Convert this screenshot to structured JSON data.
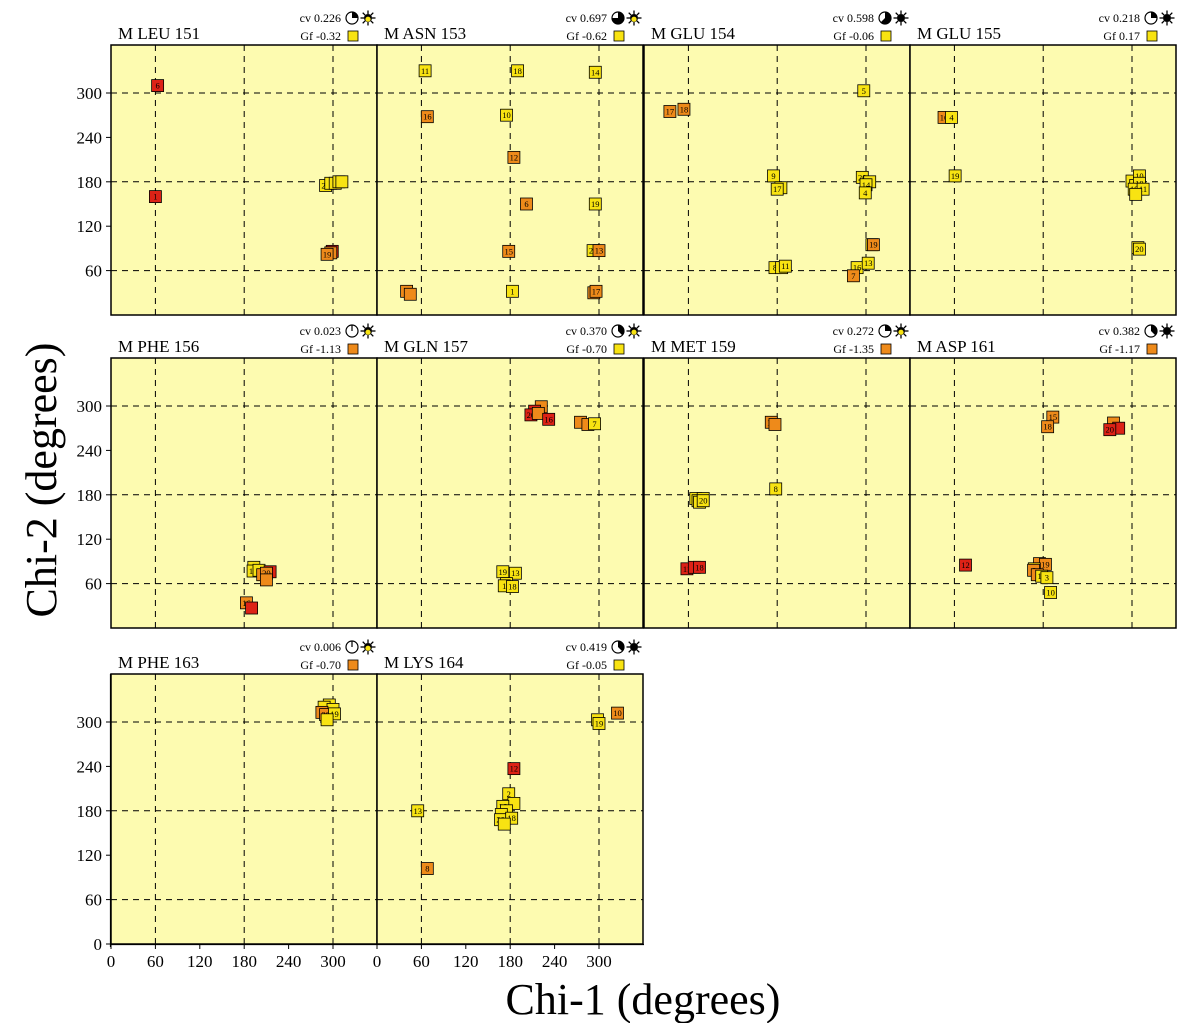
{
  "chart_data": {
    "type": "scatter",
    "xlabel": "Chi-1 (degrees)",
    "ylabel": "Chi-2 (degrees)",
    "xlim": [
      0,
      360
    ],
    "ylim": [
      0,
      360
    ],
    "xticks": [
      0,
      60,
      120,
      180,
      240,
      300
    ],
    "yticks": [
      0,
      60,
      120,
      180,
      240,
      300
    ],
    "grid_lines": [
      60,
      180,
      300
    ],
    "panel_background": "#fdfbb0",
    "color_scale": {
      "yellow": "#f8e312",
      "orange": "#ee8a1a",
      "red": "#dd2216"
    },
    "panels": [
      {
        "title": "M LEU 151",
        "cv": "cv 0.226",
        "gf": "Gf -0.32",
        "gf_color": "#f8e312",
        "cv_fraction": 0.25,
        "ring_icon": "sunburst-ring",
        "points": [
          {
            "label": "6",
            "x": 63,
            "y": 310,
            "color": "#dd2216"
          },
          {
            "label": "1",
            "x": 60,
            "y": 160,
            "color": "#dd2216"
          },
          {
            "label": "20",
            "x": 290,
            "y": 175,
            "color": "#f8e312"
          },
          {
            "label": "",
            "x": 297,
            "y": 178,
            "color": "#f8e312"
          },
          {
            "label": "",
            "x": 303,
            "y": 178,
            "color": "#f8e312"
          },
          {
            "label": "",
            "x": 308,
            "y": 180,
            "color": "#f8e312"
          },
          {
            "label": "",
            "x": 312,
            "y": 180,
            "color": "#f8e312"
          },
          {
            "label": "",
            "x": 299,
            "y": 86,
            "color": "#dd2216"
          },
          {
            "label": "",
            "x": 297,
            "y": 84,
            "color": "#ee8a1a"
          },
          {
            "label": "19",
            "x": 292,
            "y": 82,
            "color": "#ee8a1a"
          }
        ]
      },
      {
        "title": "M ASN 153",
        "cv": "cv 0.697",
        "gf": "Gf -0.62",
        "gf_color": "#f8e312",
        "cv_fraction": 0.75,
        "ring_icon": "sunburst-ring",
        "points": [
          {
            "label": "11",
            "x": 65,
            "y": 330,
            "color": "#f8e312"
          },
          {
            "label": "18",
            "x": 190,
            "y": 330,
            "color": "#f8e312"
          },
          {
            "label": "14",
            "x": 295,
            "y": 328,
            "color": "#f8e312"
          },
          {
            "label": "16",
            "x": 68,
            "y": 268,
            "color": "#ee8a1a"
          },
          {
            "label": "10",
            "x": 175,
            "y": 270,
            "color": "#f8e312"
          },
          {
            "label": "12",
            "x": 185,
            "y": 213,
            "color": "#ee8a1a"
          },
          {
            "label": "6",
            "x": 202,
            "y": 150,
            "color": "#ee8a1a"
          },
          {
            "label": "19",
            "x": 295,
            "y": 150,
            "color": "#f8e312"
          },
          {
            "label": "15",
            "x": 178,
            "y": 86,
            "color": "#ee8a1a"
          },
          {
            "label": "20",
            "x": 292,
            "y": 87,
            "color": "#f8e312"
          },
          {
            "label": "13",
            "x": 300,
            "y": 87,
            "color": "#ee8a1a"
          },
          {
            "label": "8",
            "x": 40,
            "y": 32,
            "color": "#ee8a1a"
          },
          {
            "label": "",
            "x": 45,
            "y": 28,
            "color": "#ee8a1a"
          },
          {
            "label": "1",
            "x": 183,
            "y": 32,
            "color": "#f8e312"
          },
          {
            "label": "",
            "x": 293,
            "y": 30,
            "color": "#ee8a1a"
          },
          {
            "label": "17",
            "x": 296,
            "y": 32,
            "color": "#ee8a1a"
          }
        ]
      },
      {
        "title": "M GLU 154",
        "cv": "cv 0.598",
        "gf": "Gf -0.06",
        "gf_color": "#f8e312",
        "cv_fraction": 0.625,
        "ring_icon": "sunburst-solid",
        "points": [
          {
            "label": "5",
            "x": 297,
            "y": 303,
            "color": "#f8e312"
          },
          {
            "label": "17",
            "x": 35,
            "y": 275,
            "color": "#ee8a1a"
          },
          {
            "label": "18",
            "x": 54,
            "y": 278,
            "color": "#ee8a1a"
          },
          {
            "label": "9",
            "x": 175,
            "y": 188,
            "color": "#f8e312"
          },
          {
            "label": "",
            "x": 185,
            "y": 172,
            "color": "#f8e312"
          },
          {
            "label": "17",
            "x": 180,
            "y": 170,
            "color": "#f8e312"
          },
          {
            "label": "20",
            "x": 295,
            "y": 186,
            "color": "#f8e312"
          },
          {
            "label": "",
            "x": 305,
            "y": 180,
            "color": "#f8e312"
          },
          {
            "label": "14",
            "x": 300,
            "y": 176,
            "color": "#f8e312"
          },
          {
            "label": "4",
            "x": 299,
            "y": 165,
            "color": "#f8e312"
          },
          {
            "label": "",
            "x": 308,
            "y": 95,
            "color": "#f8e312"
          },
          {
            "label": "19",
            "x": 310,
            "y": 95,
            "color": "#ee8a1a"
          },
          {
            "label": "8",
            "x": 177,
            "y": 64,
            "color": "#f8e312"
          },
          {
            "label": "",
            "x": 186,
            "y": 64,
            "color": "#f8e312"
          },
          {
            "label": "11",
            "x": 191,
            "y": 66,
            "color": "#f8e312"
          },
          {
            "label": "16",
            "x": 288,
            "y": 64,
            "color": "#f8e312"
          },
          {
            "label": "13",
            "x": 303,
            "y": 70,
            "color": "#f8e312"
          },
          {
            "label": "7",
            "x": 283,
            "y": 53,
            "color": "#ee8a1a"
          }
        ]
      },
      {
        "title": "M GLU 155",
        "cv": "cv 0.218",
        "gf": "Gf  0.17",
        "gf_color": "#f8e312",
        "cv_fraction": 0.25,
        "ring_icon": "sunburst-solid",
        "points": [
          {
            "label": "16",
            "x": 46,
            "y": 267,
            "color": "#ee8a1a"
          },
          {
            "label": "4",
            "x": 56,
            "y": 267,
            "color": "#f8e312"
          },
          {
            "label": "19",
            "x": 61,
            "y": 188,
            "color": "#f8e312"
          },
          {
            "label": "",
            "x": 300,
            "y": 181,
            "color": "#f8e312"
          },
          {
            "label": "",
            "x": 305,
            "y": 175,
            "color": "#f8e312"
          },
          {
            "label": "10",
            "x": 310,
            "y": 188,
            "color": "#f8e312"
          },
          {
            "label": "18",
            "x": 310,
            "y": 178,
            "color": "#f8e312"
          },
          {
            "label": "19",
            "x": 303,
            "y": 170,
            "color": "#f8e312"
          },
          {
            "label": "11",
            "x": 315,
            "y": 170,
            "color": "#f8e312"
          },
          {
            "label": "",
            "x": 305,
            "y": 163,
            "color": "#f8e312"
          },
          {
            "label": "",
            "x": 308,
            "y": 91,
            "color": "#f8e312"
          },
          {
            "label": "20",
            "x": 310,
            "y": 89,
            "color": "#f8e312"
          }
        ]
      },
      {
        "title": "M PHE 156",
        "cv": "cv 0.023",
        "gf": "Gf -1.13",
        "gf_color": "#ee8a1a",
        "cv_fraction": 0.02,
        "ring_icon": "sunburst-ring",
        "points": [
          {
            "label": "",
            "x": 193,
            "y": 82,
            "color": "#f8e312"
          },
          {
            "label": "18",
            "x": 192,
            "y": 77,
            "color": "#f8e312"
          },
          {
            "label": "",
            "x": 200,
            "y": 78,
            "color": "#f8e312"
          },
          {
            "label": "",
            "x": 205,
            "y": 72,
            "color": "#ee8a1a"
          },
          {
            "label": "",
            "x": 215,
            "y": 76,
            "color": "#dd2216"
          },
          {
            "label": "20",
            "x": 210,
            "y": 74,
            "color": "#ee8a1a"
          },
          {
            "label": "",
            "x": 210,
            "y": 65,
            "color": "#ee8a1a"
          },
          {
            "label": "16",
            "x": 183,
            "y": 34,
            "color": "#ee8a1a"
          },
          {
            "label": "",
            "x": 190,
            "y": 27,
            "color": "#dd2216"
          }
        ]
      },
      {
        "title": "M GLN 157",
        "cv": "cv 0.370",
        "gf": "Gf -0.70",
        "gf_color": "#f8e312",
        "cv_fraction": 0.375,
        "ring_icon": "sunburst-ring",
        "points": [
          {
            "label": "",
            "x": 222,
            "y": 299,
            "color": "#ee8a1a"
          },
          {
            "label": "",
            "x": 213,
            "y": 293,
            "color": "#dd2216"
          },
          {
            "label": "20",
            "x": 208,
            "y": 288,
            "color": "#dd2216"
          },
          {
            "label": "",
            "x": 218,
            "y": 290,
            "color": "#ee8a1a"
          },
          {
            "label": "16",
            "x": 232,
            "y": 282,
            "color": "#dd2216"
          },
          {
            "label": "",
            "x": 275,
            "y": 278,
            "color": "#ee8a1a"
          },
          {
            "label": "",
            "x": 285,
            "y": 275,
            "color": "#ee8a1a"
          },
          {
            "label": "7",
            "x": 294,
            "y": 276,
            "color": "#f8e312"
          },
          {
            "label": "19",
            "x": 170,
            "y": 76,
            "color": "#f8e312"
          },
          {
            "label": "13",
            "x": 187,
            "y": 74,
            "color": "#f8e312"
          },
          {
            "label": "",
            "x": 175,
            "y": 60,
            "color": "#f8e312"
          },
          {
            "label": "1",
            "x": 172,
            "y": 57,
            "color": "#f8e312"
          },
          {
            "label": "18",
            "x": 183,
            "y": 56,
            "color": "#f8e312"
          }
        ]
      },
      {
        "title": "M MET 159",
        "cv": "cv 0.272",
        "gf": "Gf -1.35",
        "gf_color": "#ee8a1a",
        "cv_fraction": 0.25,
        "ring_icon": "sunburst-ring",
        "points": [
          {
            "label": "14",
            "x": 172,
            "y": 278,
            "color": "#ee8a1a"
          },
          {
            "label": "",
            "x": 177,
            "y": 275,
            "color": "#ee8a1a"
          },
          {
            "label": "8",
            "x": 178,
            "y": 188,
            "color": "#f8e312"
          },
          {
            "label": "",
            "x": 70,
            "y": 175,
            "color": "#f8e312"
          },
          {
            "label": "1",
            "x": 73,
            "y": 172,
            "color": "#f8e312"
          },
          {
            "label": "",
            "x": 80,
            "y": 175,
            "color": "#f8e312"
          },
          {
            "label": "",
            "x": 75,
            "y": 170,
            "color": "#f8e312"
          },
          {
            "label": "20",
            "x": 80,
            "y": 172,
            "color": "#f8e312"
          },
          {
            "label": "11",
            "x": 58,
            "y": 80,
            "color": "#dd2216"
          },
          {
            "label": "",
            "x": 68,
            "y": 82,
            "color": "#dd2216"
          },
          {
            "label": "18",
            "x": 75,
            "y": 82,
            "color": "#dd2216"
          }
        ]
      },
      {
        "title": "M ASP 161",
        "cv": "cv 0.382",
        "gf": "Gf -1.17",
        "gf_color": "#ee8a1a",
        "cv_fraction": 0.375,
        "ring_icon": "sunburst-solid",
        "points": [
          {
            "label": "15",
            "x": 193,
            "y": 285,
            "color": "#ee8a1a"
          },
          {
            "label": "18",
            "x": 186,
            "y": 272,
            "color": "#ee8a1a"
          },
          {
            "label": "",
            "x": 275,
            "y": 277,
            "color": "#ee8a1a"
          },
          {
            "label": "",
            "x": 282,
            "y": 270,
            "color": "#dd2216"
          },
          {
            "label": "20",
            "x": 270,
            "y": 268,
            "color": "#dd2216"
          },
          {
            "label": "12",
            "x": 75,
            "y": 85,
            "color": "#dd2216"
          },
          {
            "label": "",
            "x": 175,
            "y": 87,
            "color": "#ee8a1a"
          },
          {
            "label": "19",
            "x": 183,
            "y": 86,
            "color": "#ee8a1a"
          },
          {
            "label": "",
            "x": 168,
            "y": 80,
            "color": "#f8e312"
          },
          {
            "label": "6",
            "x": 167,
            "y": 78,
            "color": "#ee8a1a"
          },
          {
            "label": "",
            "x": 172,
            "y": 72,
            "color": "#ee8a1a"
          },
          {
            "label": "17",
            "x": 178,
            "y": 70,
            "color": "#f8e312"
          },
          {
            "label": "3",
            "x": 185,
            "y": 68,
            "color": "#f8e312"
          },
          {
            "label": "10",
            "x": 190,
            "y": 48,
            "color": "#f8e312"
          }
        ]
      },
      {
        "title": "M PHE 163",
        "cv": "cv 0.006",
        "gf": "Gf -0.70",
        "gf_color": "#ee8a1a",
        "cv_fraction": 0.01,
        "ring_icon": "sunburst-ring",
        "points": [
          {
            "label": "",
            "x": 295,
            "y": 323,
            "color": "#f8e312"
          },
          {
            "label": "",
            "x": 288,
            "y": 320,
            "color": "#f8e312"
          },
          {
            "label": "",
            "x": 300,
            "y": 317,
            "color": "#f8e312"
          },
          {
            "label": "",
            "x": 285,
            "y": 313,
            "color": "#ee8a1a"
          },
          {
            "label": "20",
            "x": 290,
            "y": 310,
            "color": "#ee8a1a"
          },
          {
            "label": "19",
            "x": 302,
            "y": 311,
            "color": "#f8e312"
          },
          {
            "label": "",
            "x": 292,
            "y": 303,
            "color": "#f8e312"
          }
        ]
      },
      {
        "title": "M LYS 164",
        "cv": "cv 0.419",
        "gf": "Gf -0.05",
        "gf_color": "#f8e312",
        "cv_fraction": 0.375,
        "ring_icon": "sunburst-solid",
        "points": [
          {
            "label": "10",
            "x": 325,
            "y": 312,
            "color": "#ee8a1a"
          },
          {
            "label": "",
            "x": 298,
            "y": 303,
            "color": "#f8e312"
          },
          {
            "label": "19",
            "x": 300,
            "y": 298,
            "color": "#f8e312"
          },
          {
            "label": "12",
            "x": 185,
            "y": 237,
            "color": "#dd2216"
          },
          {
            "label": "13",
            "x": 55,
            "y": 180,
            "color": "#f8e312"
          },
          {
            "label": "2",
            "x": 178,
            "y": 203,
            "color": "#f8e312"
          },
          {
            "label": "",
            "x": 185,
            "y": 190,
            "color": "#f8e312"
          },
          {
            "label": "16",
            "x": 170,
            "y": 186,
            "color": "#f8e312"
          },
          {
            "label": "",
            "x": 175,
            "y": 180,
            "color": "#f8e312"
          },
          {
            "label": "",
            "x": 168,
            "y": 175,
            "color": "#f8e312"
          },
          {
            "label": "20",
            "x": 167,
            "y": 168,
            "color": "#f8e312"
          },
          {
            "label": "18",
            "x": 182,
            "y": 170,
            "color": "#f8e312"
          },
          {
            "label": "",
            "x": 172,
            "y": 162,
            "color": "#f8e312"
          },
          {
            "label": "8",
            "x": 68,
            "y": 102,
            "color": "#ee8a1a"
          }
        ]
      }
    ]
  }
}
